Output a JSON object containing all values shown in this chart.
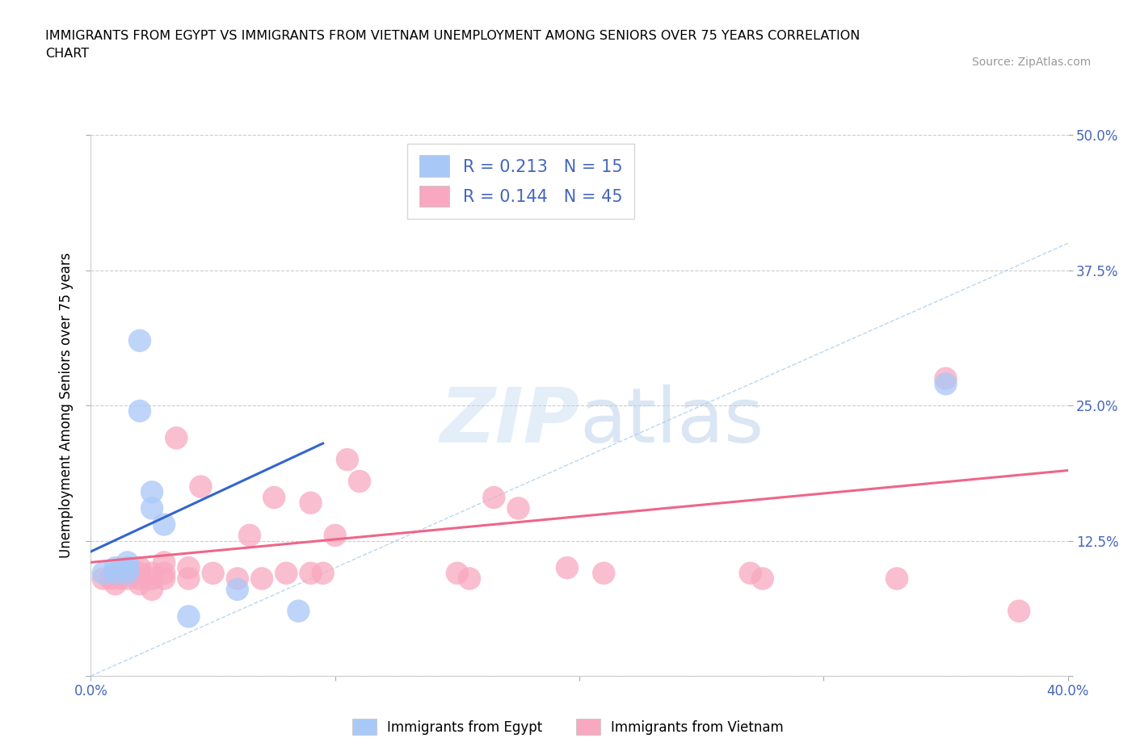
{
  "title": "IMMIGRANTS FROM EGYPT VS IMMIGRANTS FROM VIETNAM UNEMPLOYMENT AMONG SENIORS OVER 75 YEARS CORRELATION\nCHART",
  "source": "Source: ZipAtlas.com",
  "ylabel": "Unemployment Among Seniors over 75 years",
  "xlim": [
    0.0,
    0.4
  ],
  "ylim": [
    0.0,
    0.5
  ],
  "xticks": [
    0.0,
    0.1,
    0.2,
    0.3,
    0.4
  ],
  "xtick_labels": [
    "0.0%",
    "",
    "",
    "",
    "40.0%"
  ],
  "yticks": [
    0.0,
    0.125,
    0.25,
    0.375,
    0.5
  ],
  "ytick_labels": [
    "",
    "12.5%",
    "25.0%",
    "37.5%",
    "50.0%"
  ],
  "egypt_R": 0.213,
  "egypt_N": 15,
  "vietnam_R": 0.144,
  "vietnam_N": 45,
  "egypt_color": "#a8c8f8",
  "vietnam_color": "#f8a8c0",
  "egypt_line_color": "#3366cc",
  "vietnam_line_color": "#ee6688",
  "diag_color": "#aaccee",
  "egypt_x": [
    0.005,
    0.01,
    0.01,
    0.015,
    0.015,
    0.015,
    0.02,
    0.02,
    0.025,
    0.025,
    0.03,
    0.04,
    0.06,
    0.085,
    0.35
  ],
  "egypt_y": [
    0.095,
    0.095,
    0.1,
    0.095,
    0.1,
    0.105,
    0.245,
    0.31,
    0.155,
    0.17,
    0.14,
    0.055,
    0.08,
    0.06,
    0.27
  ],
  "vietnam_x": [
    0.005,
    0.008,
    0.01,
    0.01,
    0.012,
    0.015,
    0.015,
    0.015,
    0.02,
    0.02,
    0.02,
    0.02,
    0.025,
    0.025,
    0.025,
    0.03,
    0.03,
    0.03,
    0.035,
    0.04,
    0.04,
    0.045,
    0.05,
    0.06,
    0.065,
    0.07,
    0.075,
    0.08,
    0.09,
    0.09,
    0.095,
    0.1,
    0.105,
    0.11,
    0.15,
    0.155,
    0.165,
    0.175,
    0.195,
    0.21,
    0.27,
    0.275,
    0.33,
    0.35,
    0.38
  ],
  "vietnam_y": [
    0.09,
    0.09,
    0.085,
    0.095,
    0.09,
    0.09,
    0.095,
    0.1,
    0.085,
    0.09,
    0.095,
    0.1,
    0.08,
    0.09,
    0.095,
    0.09,
    0.095,
    0.105,
    0.22,
    0.09,
    0.1,
    0.175,
    0.095,
    0.09,
    0.13,
    0.09,
    0.165,
    0.095,
    0.16,
    0.095,
    0.095,
    0.13,
    0.2,
    0.18,
    0.095,
    0.09,
    0.165,
    0.155,
    0.1,
    0.095,
    0.095,
    0.09,
    0.09,
    0.275,
    0.06
  ],
  "egypt_line_x": [
    0.0,
    0.095
  ],
  "egypt_line_y": [
    0.115,
    0.215
  ],
  "vietnam_line_x": [
    0.0,
    0.4
  ],
  "vietnam_line_y": [
    0.105,
    0.19
  ]
}
